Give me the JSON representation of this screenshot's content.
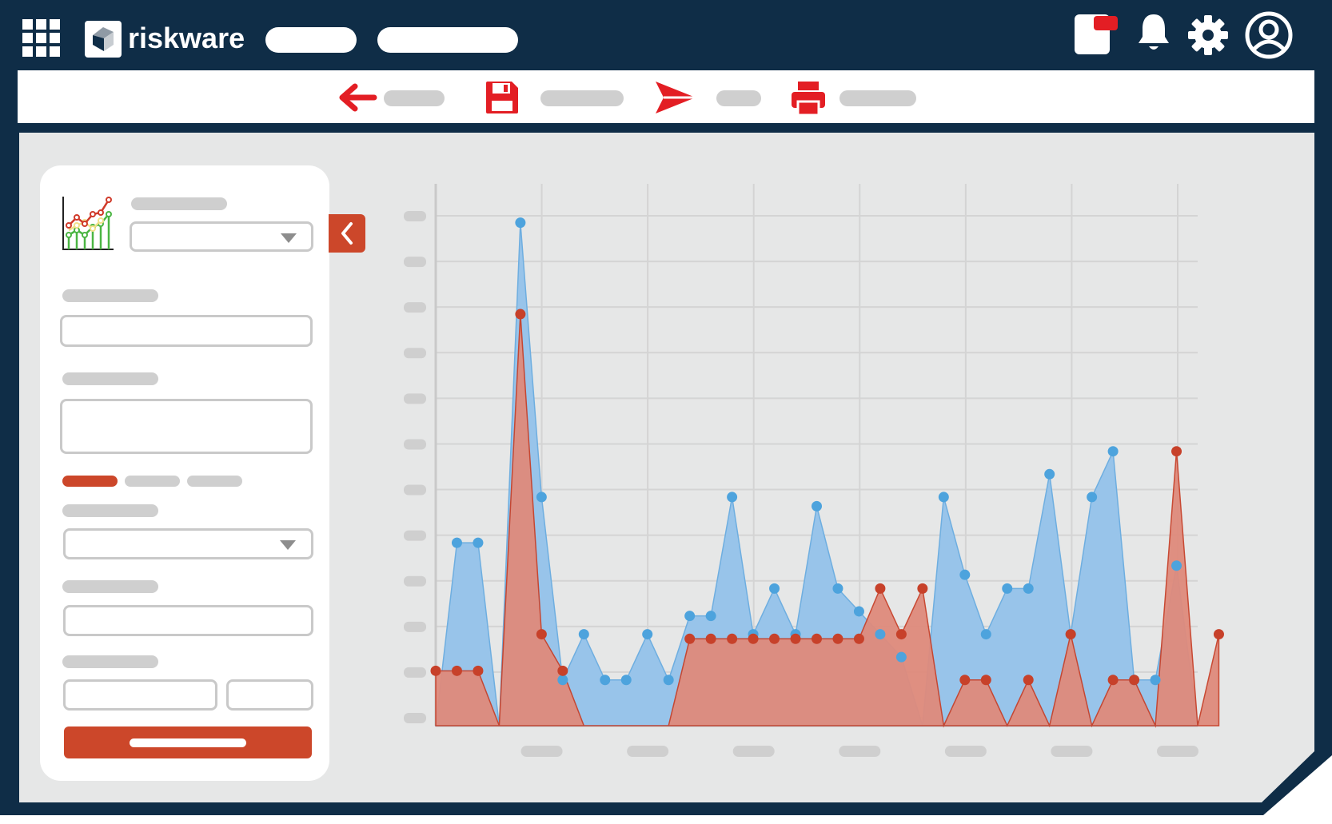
{
  "app": {
    "brand": "riskware"
  },
  "icons": {
    "apps": "grid-icon",
    "logo": "riskware-logo-icon",
    "message": "message-icon",
    "bell": "bell-icon",
    "settings": "gear-icon",
    "user": "user-avatar-icon",
    "back": "arrow-left-icon",
    "save": "floppy-disk-icon",
    "send": "paper-plane-icon",
    "print": "printer-icon",
    "chart_type": "line-chart-icon",
    "collapse": "chevron-left-icon"
  },
  "colors": {
    "frame": "#0f2d47",
    "canvas": "#e6e7e7",
    "accent": "#cc472a",
    "toolbar_icon": "#e31e24",
    "series_blue_fill": "#98c4ea",
    "series_blue_point": "#4da3dd",
    "series_red_fill": "#df8b7c",
    "series_red_point": "#c7412a"
  },
  "chart_data": {
    "type": "area",
    "y_range": [
      0,
      11.5
    ],
    "x_range": [
      0,
      36
    ],
    "grid": true,
    "series": [
      {
        "points": [
          [
            0,
            0
          ],
          [
            1,
            4
          ],
          [
            2,
            4
          ],
          [
            3,
            0
          ],
          [
            4,
            11
          ],
          [
            5,
            5
          ],
          [
            6,
            1
          ],
          [
            7,
            2
          ],
          [
            8,
            1
          ],
          [
            9,
            1
          ],
          [
            10,
            2
          ],
          [
            11,
            1
          ],
          [
            12,
            2.4
          ],
          [
            13,
            2.4
          ],
          [
            14,
            5
          ],
          [
            15,
            2
          ],
          [
            16,
            3
          ],
          [
            17,
            2
          ],
          [
            18,
            4.8
          ],
          [
            19,
            3
          ],
          [
            20,
            2.5
          ],
          [
            21,
            2
          ],
          [
            22,
            1.5
          ],
          [
            23,
            0
          ],
          [
            24,
            5
          ],
          [
            25,
            3.3
          ],
          [
            26,
            2
          ],
          [
            27,
            3
          ],
          [
            28,
            3
          ],
          [
            29,
            5.5
          ],
          [
            30,
            2
          ],
          [
            31,
            5
          ],
          [
            32,
            6
          ],
          [
            33,
            1
          ],
          [
            34,
            1
          ],
          [
            35,
            3.5
          ],
          [
            36,
            0
          ]
        ]
      },
      {
        "points": [
          [
            0,
            1.2
          ],
          [
            1,
            1.2
          ],
          [
            2,
            1.2
          ],
          [
            3,
            0
          ],
          [
            4,
            9
          ],
          [
            5,
            2
          ],
          [
            6,
            1.2
          ],
          [
            7,
            0
          ],
          [
            8,
            0
          ],
          [
            9,
            0
          ],
          [
            10,
            0
          ],
          [
            11,
            0
          ],
          [
            12,
            1.9
          ],
          [
            13,
            1.9
          ],
          [
            14,
            1.9
          ],
          [
            15,
            1.9
          ],
          [
            16,
            1.9
          ],
          [
            17,
            1.9
          ],
          [
            18,
            1.9
          ],
          [
            19,
            1.9
          ],
          [
            20,
            1.9
          ],
          [
            21,
            3
          ],
          [
            22,
            2
          ],
          [
            23,
            3
          ],
          [
            24,
            0
          ],
          [
            25,
            1
          ],
          [
            26,
            1
          ],
          [
            27,
            0
          ],
          [
            28,
            1
          ],
          [
            29,
            0
          ],
          [
            30,
            2
          ],
          [
            31,
            0
          ],
          [
            32,
            1
          ],
          [
            33,
            1
          ],
          [
            34,
            0
          ],
          [
            35,
            6
          ],
          [
            36,
            0
          ],
          [
            37,
            2
          ]
        ]
      }
    ],
    "x_tick_count": 7,
    "y_tick_count": 12
  }
}
